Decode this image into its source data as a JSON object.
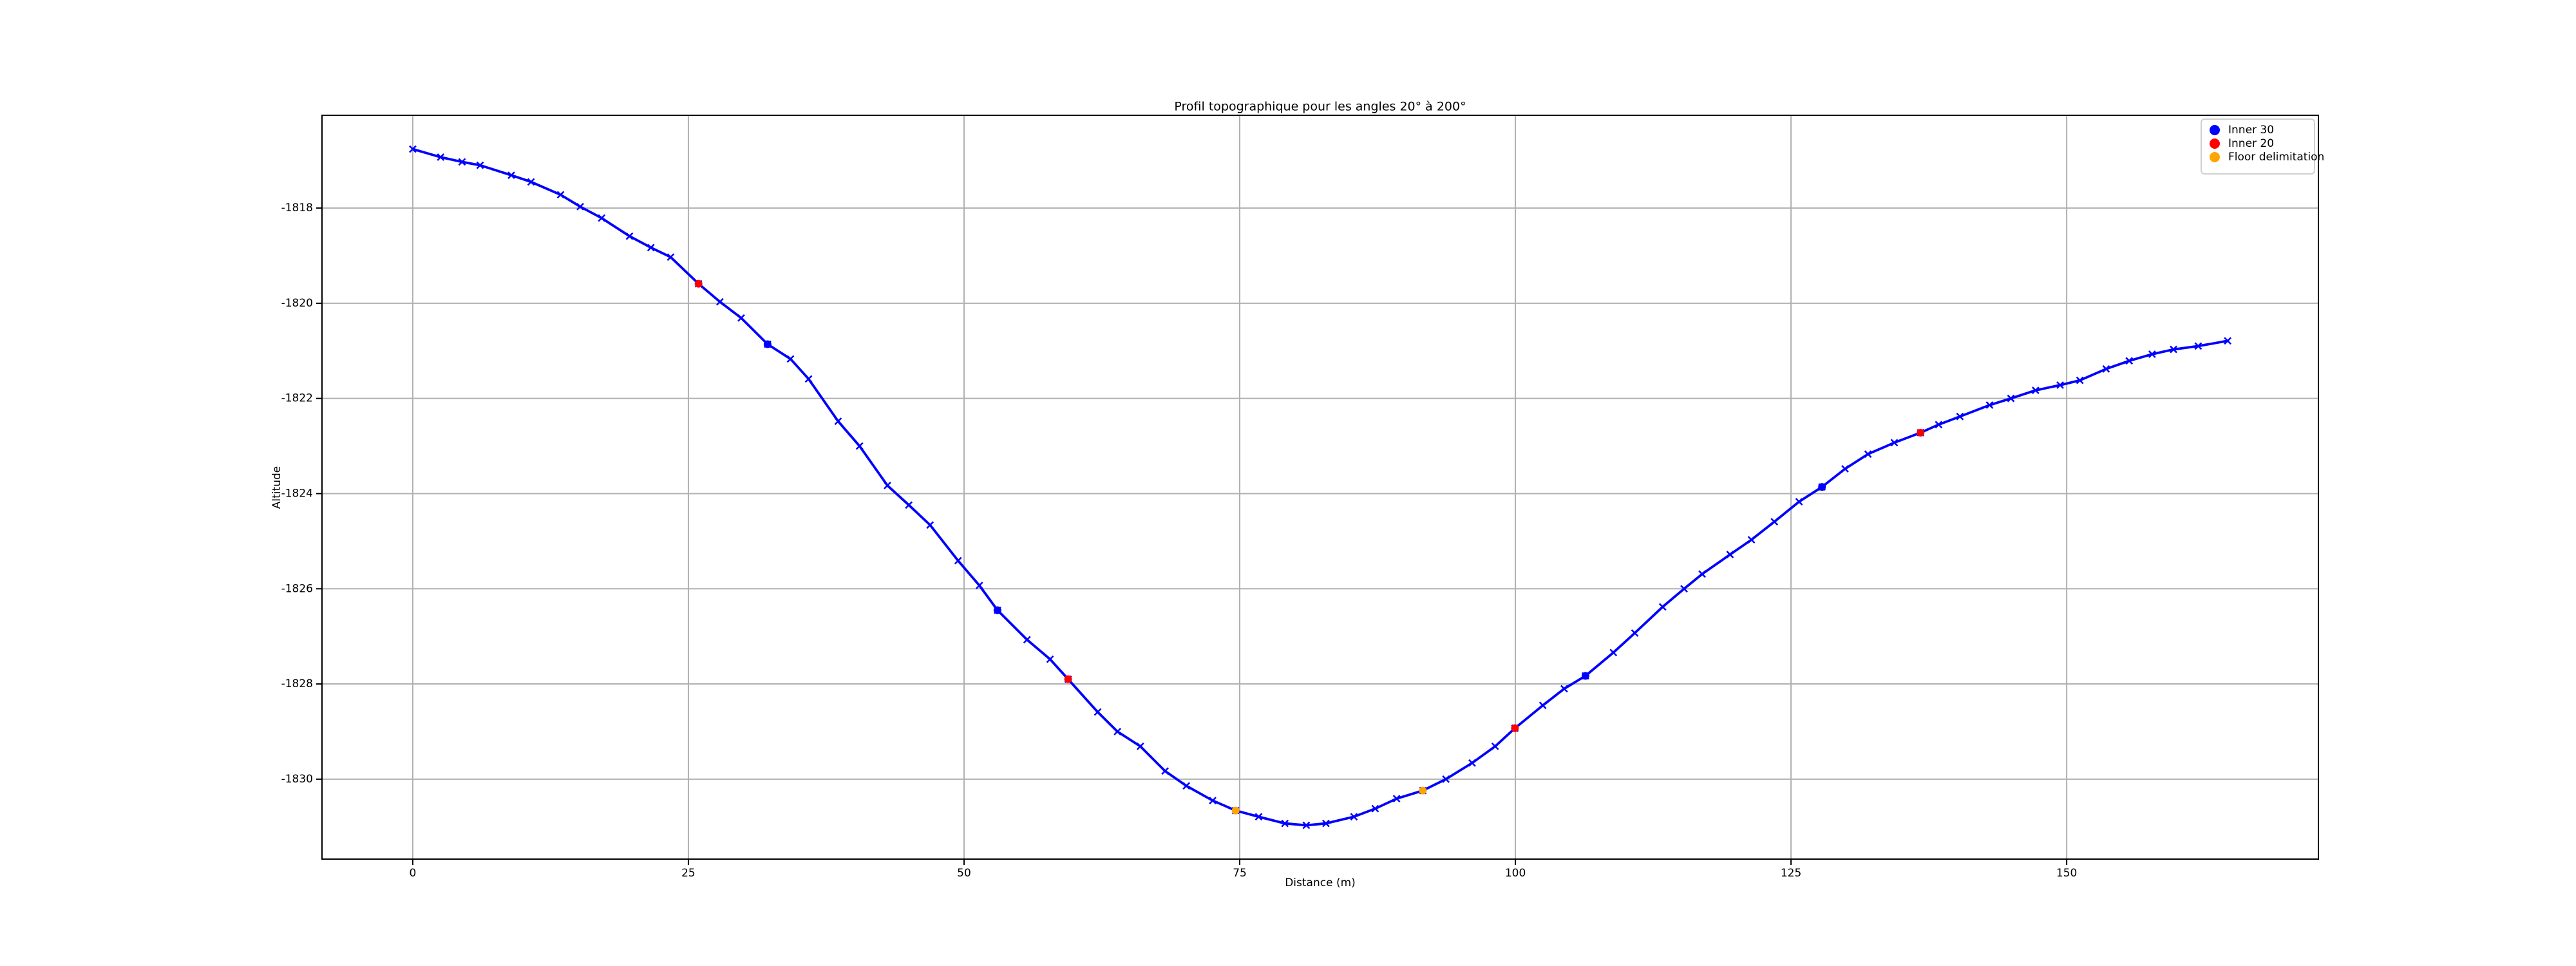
{
  "chart_data": {
    "type": "line",
    "title": "Profil topographique pour les angles 20° à 200°",
    "xlabel": "Distance (m)",
    "ylabel": "Altitude",
    "xlim": [
      -8.23,
      172.83
    ],
    "ylim": [
      -1831.68,
      -1816.05
    ],
    "xticks": [
      0,
      25,
      50,
      75,
      100,
      125,
      150
    ],
    "yticks": [
      -1830,
      -1828,
      -1826,
      -1824,
      -1822,
      -1820,
      -1818
    ],
    "grid": true,
    "legend": "upper right",
    "series": [
      {
        "type": "line",
        "color": "blue",
        "marker": "x",
        "x": [
          0,
          2.53,
          4.47,
          6.11,
          8.94,
          10.73,
          13.41,
          15.19,
          17.13,
          19.66,
          21.6,
          23.39,
          25.92,
          27.86,
          29.79,
          32.18,
          34.26,
          35.9,
          38.58,
          40.52,
          43.05,
          44.99,
          46.92,
          49.46,
          51.39,
          53.03,
          55.71,
          57.8,
          59.44,
          62.12,
          63.91,
          65.99,
          68.23,
          70.16,
          72.55,
          74.63,
          76.72,
          79.1,
          81.04,
          82.82,
          85.36,
          87.29,
          89.23,
          91.61,
          93.7,
          96.08,
          98.17,
          99.96,
          102.49,
          104.43,
          106.36,
          108.89,
          110.83,
          113.36,
          115.3,
          116.94,
          119.47,
          121.41,
          123.49,
          125.73,
          127.81,
          129.9,
          131.98,
          134.37,
          136.75,
          138.39,
          140.32,
          143.01,
          144.94,
          147.18,
          149.41,
          151.2,
          153.58,
          155.67,
          157.75,
          159.69,
          161.93,
          164.6
        ],
        "values": [
          -1816.76,
          -1816.93,
          -1817.03,
          -1817.1,
          -1817.31,
          -1817.45,
          -1817.72,
          -1817.97,
          -1818.21,
          -1818.59,
          -1818.83,
          -1819.03,
          -1819.59,
          -1819.97,
          -1820.31,
          -1820.86,
          -1821.17,
          -1821.59,
          -1822.48,
          -1823.0,
          -1823.83,
          -1824.24,
          -1824.66,
          -1825.41,
          -1825.93,
          -1826.45,
          -1827.07,
          -1827.48,
          -1827.9,
          -1828.59,
          -1829.0,
          -1829.31,
          -1829.83,
          -1830.14,
          -1830.45,
          -1830.66,
          -1830.79,
          -1830.93,
          -1830.97,
          -1830.93,
          -1830.79,
          -1830.62,
          -1830.41,
          -1830.24,
          -1830.0,
          -1829.66,
          -1829.31,
          -1828.93,
          -1828.45,
          -1828.1,
          -1827.83,
          -1827.34,
          -1826.93,
          -1826.38,
          -1826.0,
          -1825.69,
          -1825.28,
          -1824.97,
          -1824.59,
          -1824.17,
          -1823.86,
          -1823.48,
          -1823.17,
          -1822.93,
          -1822.72,
          -1822.55,
          -1822.38,
          -1822.14,
          -1822.0,
          -1821.83,
          -1821.72,
          -1821.62,
          -1821.38,
          -1821.21,
          -1821.07,
          -1820.97,
          -1820.9,
          -1820.79
        ]
      },
      {
        "type": "scatter",
        "name": "Inner 30",
        "color": "blue",
        "x": [
          32.18,
          53.03,
          106.36,
          127.81
        ],
        "values": [
          -1820.86,
          -1826.45,
          -1827.83,
          -1823.86
        ]
      },
      {
        "type": "scatter",
        "name": "Inner 20",
        "color": "red",
        "x": [
          25.92,
          59.44,
          99.96,
          136.75
        ],
        "values": [
          -1819.59,
          -1827.9,
          -1828.93,
          -1822.72
        ]
      },
      {
        "type": "scatter",
        "name": "Floor delimitation",
        "color": "orange",
        "x": [
          74.63,
          91.61
        ],
        "values": [
          -1830.66,
          -1830.24
        ]
      }
    ]
  }
}
